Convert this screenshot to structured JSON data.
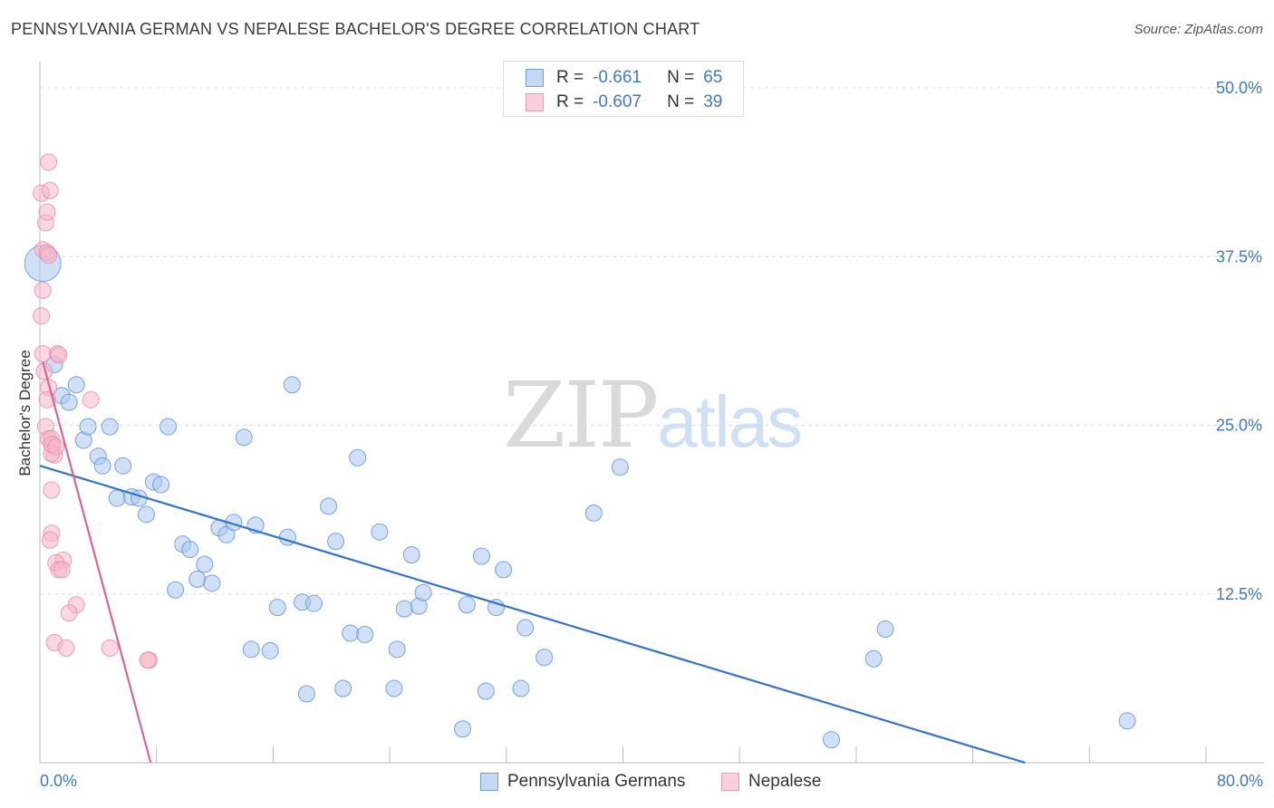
{
  "title": "PENNSYLVANIA GERMAN VS NEPALESE BACHELOR'S DEGREE CORRELATION CHART",
  "source": "Source: ZipAtlas.com",
  "watermark": {
    "zip": "ZIP",
    "atlas": "atlas"
  },
  "colors": {
    "blue_fill": "#a9c8f0",
    "blue_stroke": "#5b8fd8",
    "blue_line": "#2f73d4",
    "pink_fill": "#f6b6c8",
    "pink_stroke": "#e98aa8",
    "pink_line": "#e0628f",
    "accent_text": "#3d79c9",
    "grid": "#dddddd"
  },
  "legend_top": {
    "rows": [
      {
        "r_label": "R =",
        "r_value": "-0.661",
        "n_label": "N =",
        "n_value": "65",
        "series": "blue"
      },
      {
        "r_label": "R =",
        "r_value": "-0.607",
        "n_label": "N =",
        "n_value": "39",
        "series": "pink"
      }
    ]
  },
  "legend_bottom": {
    "items": [
      {
        "label": "Pennsylvania Germans",
        "series": "blue"
      },
      {
        "label": "Nepalese",
        "series": "pink"
      }
    ]
  },
  "chart_data": {
    "type": "scatter",
    "title": "PENNSYLVANIA GERMAN VS NEPALESE BACHELOR'S DEGREE CORRELATION CHART",
    "xlabel": "",
    "ylabel": "Bachelor's Degree",
    "xlim": [
      0,
      80
    ],
    "ylim": [
      0,
      50
    ],
    "x_tick_labels": [
      "0.0%",
      "80.0%"
    ],
    "y_ticks": [
      12.5,
      25.0,
      37.5,
      50.0
    ],
    "y_tick_labels": [
      "12.5%",
      "25.0%",
      "37.5%",
      "50.0%"
    ],
    "grid": true,
    "series": [
      {
        "name": "Pennsylvania Germans",
        "color": "blue",
        "points": [
          [
            0.2,
            37.0
          ],
          [
            1.0,
            29.5
          ],
          [
            1.5,
            27.2
          ],
          [
            2.0,
            26.7
          ],
          [
            2.5,
            28.0
          ],
          [
            3.0,
            23.9
          ],
          [
            3.3,
            24.9
          ],
          [
            4.0,
            22.7
          ],
          [
            4.3,
            22.0
          ],
          [
            4.8,
            24.9
          ],
          [
            5.3,
            19.6
          ],
          [
            5.7,
            22.0
          ],
          [
            6.3,
            19.7
          ],
          [
            6.8,
            19.6
          ],
          [
            7.3,
            18.4
          ],
          [
            7.8,
            20.8
          ],
          [
            8.3,
            20.6
          ],
          [
            8.8,
            24.9
          ],
          [
            9.3,
            12.8
          ],
          [
            9.8,
            16.2
          ],
          [
            10.3,
            15.8
          ],
          [
            10.8,
            13.6
          ],
          [
            11.3,
            14.7
          ],
          [
            11.8,
            13.3
          ],
          [
            12.3,
            17.4
          ],
          [
            12.8,
            16.9
          ],
          [
            13.3,
            17.8
          ],
          [
            14.0,
            24.1
          ],
          [
            14.5,
            8.4
          ],
          [
            14.8,
            17.6
          ],
          [
            15.8,
            8.3
          ],
          [
            16.3,
            11.5
          ],
          [
            17.0,
            16.7
          ],
          [
            17.3,
            28.0
          ],
          [
            18.0,
            11.9
          ],
          [
            18.3,
            5.1
          ],
          [
            18.8,
            11.8
          ],
          [
            19.8,
            19.0
          ],
          [
            20.3,
            16.4
          ],
          [
            20.8,
            5.5
          ],
          [
            21.3,
            9.6
          ],
          [
            21.8,
            22.6
          ],
          [
            22.3,
            9.5
          ],
          [
            23.3,
            17.1
          ],
          [
            24.3,
            5.5
          ],
          [
            24.5,
            8.4
          ],
          [
            25.0,
            11.4
          ],
          [
            25.5,
            15.4
          ],
          [
            26.0,
            11.6
          ],
          [
            26.3,
            12.6
          ],
          [
            29.0,
            2.5
          ],
          [
            29.3,
            11.7
          ],
          [
            30.3,
            15.3
          ],
          [
            30.6,
            5.3
          ],
          [
            31.3,
            11.5
          ],
          [
            31.8,
            14.3
          ],
          [
            33.0,
            5.5
          ],
          [
            33.3,
            10.0
          ],
          [
            34.6,
            7.8
          ],
          [
            38.0,
            18.5
          ],
          [
            39.8,
            21.9
          ],
          [
            54.3,
            1.7
          ],
          [
            57.2,
            7.7
          ],
          [
            58.0,
            9.9
          ],
          [
            74.6,
            3.1
          ]
        ],
        "trend": {
          "x": [
            0,
            67.6
          ],
          "y": [
            22.0,
            0
          ]
        }
      },
      {
        "name": "Nepalese",
        "color": "pink",
        "points": [
          [
            0.1,
            42.2
          ],
          [
            0.4,
            40.0
          ],
          [
            0.5,
            40.8
          ],
          [
            0.6,
            44.5
          ],
          [
            0.7,
            42.4
          ],
          [
            0.2,
            38.0
          ],
          [
            0.5,
            37.8
          ],
          [
            0.6,
            37.6
          ],
          [
            0.2,
            35.0
          ],
          [
            0.1,
            33.1
          ],
          [
            0.2,
            30.3
          ],
          [
            1.2,
            30.3
          ],
          [
            1.3,
            30.2
          ],
          [
            0.3,
            29.0
          ],
          [
            0.6,
            27.8
          ],
          [
            0.5,
            26.9
          ],
          [
            3.5,
            26.9
          ],
          [
            0.4,
            24.9
          ],
          [
            0.6,
            24.0
          ],
          [
            0.8,
            24.0
          ],
          [
            0.9,
            23.5
          ],
          [
            1.0,
            22.8
          ],
          [
            0.8,
            22.9
          ],
          [
            0.8,
            20.2
          ],
          [
            0.8,
            17.0
          ],
          [
            0.7,
            16.5
          ],
          [
            1.6,
            15.0
          ],
          [
            1.1,
            14.8
          ],
          [
            1.3,
            14.3
          ],
          [
            1.5,
            14.3
          ],
          [
            2.5,
            11.7
          ],
          [
            2.0,
            11.1
          ],
          [
            1.0,
            8.9
          ],
          [
            1.8,
            8.5
          ],
          [
            4.8,
            8.5
          ],
          [
            7.5,
            7.6
          ],
          [
            7.4,
            7.6
          ],
          [
            0.8,
            23.6
          ],
          [
            1.1,
            23.4
          ]
        ],
        "trend": {
          "x": [
            0.2,
            7.6
          ],
          "y": [
            29.7,
            0
          ]
        }
      }
    ]
  }
}
